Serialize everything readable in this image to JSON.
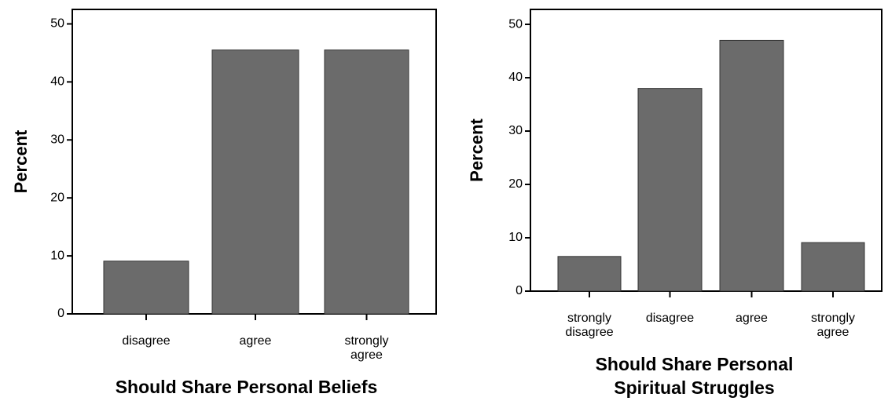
{
  "chart_data": [
    {
      "type": "bar",
      "x_label": "Should Share Personal Beliefs",
      "y_label": "Percent",
      "categories": [
        "disagree",
        "agree",
        "strongly agree"
      ],
      "values": [
        9.1,
        45.5,
        45.5
      ],
      "color": "#6b6b6b",
      "ylim": [
        0,
        52.5
      ],
      "yticks": [
        0,
        10,
        20,
        30,
        40,
        50
      ]
    },
    {
      "type": "bar",
      "x_label": "Should Share Personal Spiritual Struggles",
      "y_label": "Percent",
      "categories": [
        "strongly disagree",
        "disagree",
        "agree",
        "strongly agree"
      ],
      "values": [
        6.5,
        38,
        47,
        9.1
      ],
      "color": "#6b6b6b",
      "ylim": [
        0,
        52.8
      ],
      "yticks": [
        0,
        10,
        20,
        30,
        40,
        50
      ]
    }
  ]
}
